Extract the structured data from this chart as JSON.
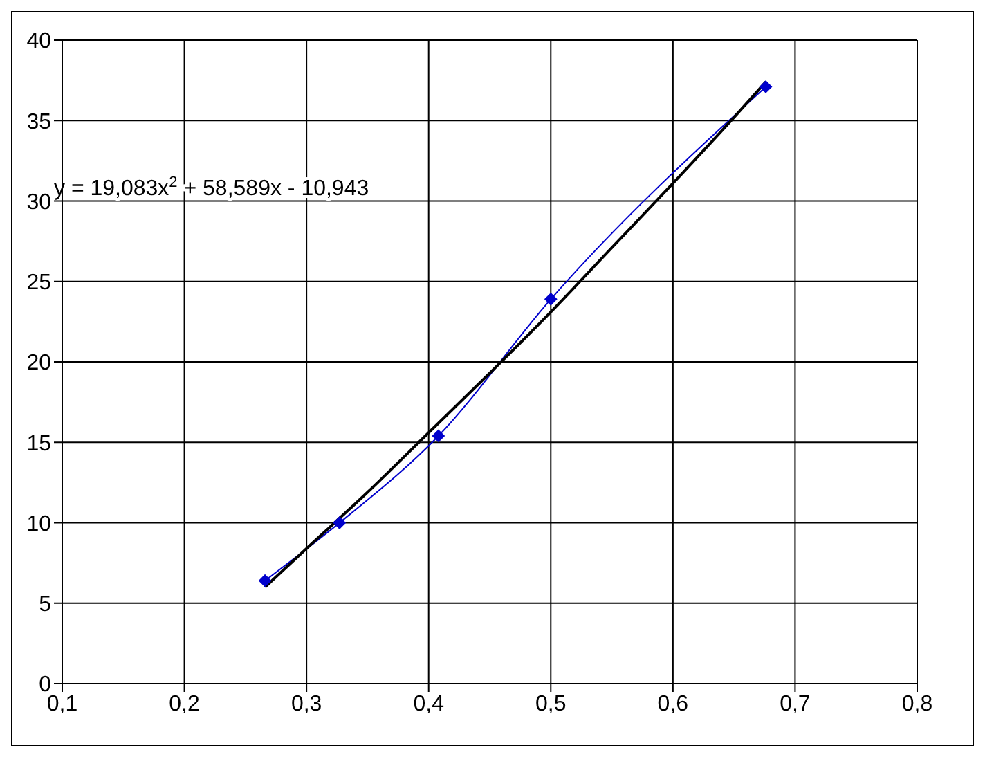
{
  "chart_data": {
    "type": "line",
    "xlim": [
      0.1,
      0.8
    ],
    "ylim": [
      0,
      40
    ],
    "xticks": [
      {
        "value": 0.1,
        "label": "0,1"
      },
      {
        "value": 0.2,
        "label": "0,2"
      },
      {
        "value": 0.3,
        "label": "0,3"
      },
      {
        "value": 0.4,
        "label": "0,4"
      },
      {
        "value": 0.5,
        "label": "0,5"
      },
      {
        "value": 0.6,
        "label": "0,6"
      },
      {
        "value": 0.7,
        "label": "0,7"
      },
      {
        "value": 0.8,
        "label": "0,8"
      }
    ],
    "yticks": [
      0,
      5,
      10,
      15,
      20,
      25,
      30,
      35,
      40
    ],
    "grid": true,
    "series": [
      {
        "color": "#0000cc",
        "marker": "diamond",
        "x": [
          0.266,
          0.327,
          0.408,
          0.5,
          0.676
        ],
        "values": [
          6.4,
          10.0,
          15.4,
          23.9,
          37.1
        ]
      },
      {
        "color": "#000000",
        "marker": "none",
        "x": [
          0.266,
          0.3,
          0.35,
          0.4,
          0.45,
          0.5,
          0.55,
          0.6,
          0.65,
          0.676
        ],
        "values": [
          6.0,
          8.4,
          11.9,
          15.6,
          19.3,
          23.1,
          27.1,
          31.1,
          35.2,
          37.4
        ]
      }
    ],
    "annotations": [
      "y = 19,083x$^{2}$ + 58,589x - 10,943"
    ]
  }
}
